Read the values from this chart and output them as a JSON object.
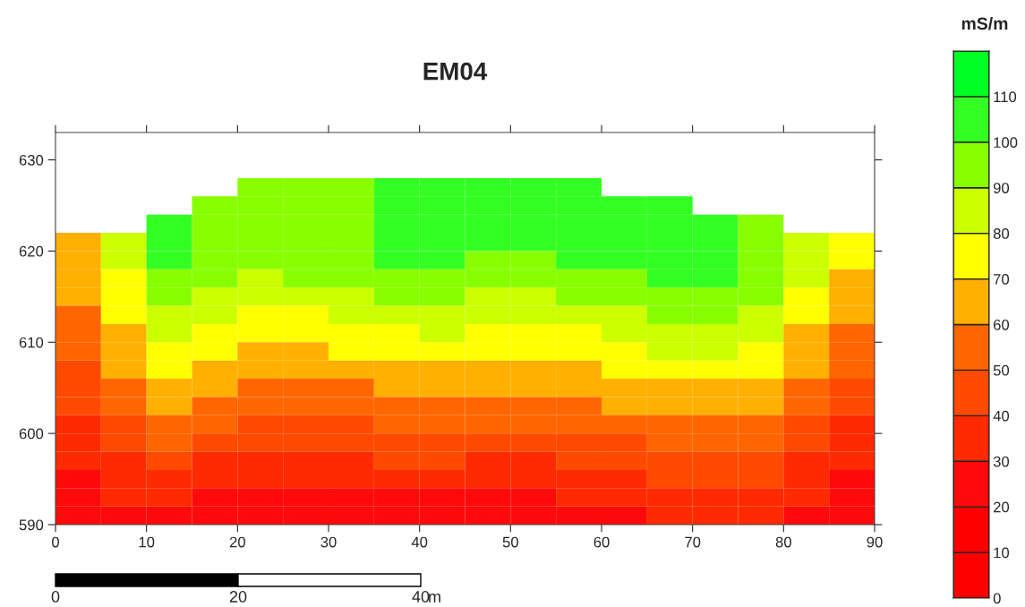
{
  "chart_data": {
    "type": "heatmap",
    "title": "EM04",
    "clabel": "mS/m",
    "x": [
      2.5,
      7.5,
      12.5,
      17.5,
      22.5,
      27.5,
      32.5,
      37.5,
      42.5,
      47.5,
      52.5,
      57.5,
      62.5,
      67.5,
      72.5,
      77.5,
      82.5,
      87.5
    ],
    "y": [
      627,
      625,
      623,
      621,
      619,
      617,
      615,
      613,
      611,
      609,
      607,
      605,
      603,
      601,
      599,
      597,
      595,
      593,
      591
    ],
    "xlim": [
      0,
      90
    ],
    "xticks": [
      0,
      10,
      20,
      30,
      40,
      50,
      60,
      70,
      80,
      90
    ],
    "ylim": [
      590,
      633
    ],
    "yticks": [
      590,
      600,
      610,
      620,
      630
    ],
    "cells": [
      [
        null,
        null,
        null,
        null,
        95,
        95,
        95,
        105,
        105,
        105,
        105,
        105,
        null,
        null,
        null,
        null,
        null,
        null
      ],
      [
        null,
        null,
        null,
        95,
        95,
        95,
        95,
        105,
        105,
        105,
        105,
        105,
        105,
        105,
        null,
        null,
        null,
        null
      ],
      [
        null,
        null,
        105,
        95,
        95,
        95,
        95,
        105,
        105,
        105,
        105,
        105,
        105,
        105,
        105,
        95,
        null,
        null
      ],
      [
        65,
        85,
        105,
        95,
        95,
        95,
        95,
        105,
        105,
        105,
        105,
        105,
        105,
        105,
        105,
        95,
        85,
        75
      ],
      [
        65,
        85,
        105,
        95,
        95,
        95,
        95,
        105,
        105,
        95,
        95,
        105,
        105,
        105,
        105,
        95,
        85,
        75
      ],
      [
        65,
        75,
        95,
        95,
        85,
        95,
        95,
        95,
        95,
        95,
        95,
        95,
        95,
        105,
        105,
        95,
        85,
        65
      ],
      [
        65,
        75,
        95,
        85,
        85,
        85,
        85,
        95,
        95,
        85,
        85,
        95,
        95,
        95,
        95,
        95,
        75,
        65
      ],
      [
        55,
        75,
        85,
        85,
        75,
        75,
        85,
        85,
        85,
        85,
        85,
        85,
        85,
        95,
        95,
        85,
        75,
        65
      ],
      [
        55,
        65,
        85,
        75,
        75,
        75,
        75,
        75,
        85,
        75,
        75,
        75,
        85,
        85,
        85,
        85,
        65,
        55
      ],
      [
        55,
        65,
        75,
        75,
        65,
        65,
        75,
        75,
        75,
        75,
        75,
        75,
        75,
        85,
        85,
        75,
        65,
        55
      ],
      [
        45,
        65,
        75,
        65,
        65,
        65,
        65,
        65,
        65,
        65,
        65,
        65,
        75,
        75,
        75,
        75,
        65,
        55
      ],
      [
        45,
        55,
        65,
        65,
        55,
        55,
        55,
        65,
        65,
        65,
        65,
        65,
        65,
        65,
        65,
        65,
        55,
        45
      ],
      [
        45,
        55,
        65,
        55,
        55,
        55,
        55,
        55,
        55,
        55,
        55,
        55,
        65,
        65,
        65,
        65,
        55,
        45
      ],
      [
        35,
        45,
        55,
        55,
        45,
        45,
        45,
        55,
        55,
        55,
        55,
        55,
        55,
        55,
        55,
        55,
        45,
        35
      ],
      [
        35,
        45,
        55,
        45,
        45,
        45,
        45,
        45,
        45,
        45,
        45,
        45,
        45,
        55,
        55,
        55,
        45,
        35
      ],
      [
        35,
        35,
        45,
        35,
        35,
        35,
        35,
        45,
        45,
        35,
        35,
        45,
        45,
        45,
        45,
        45,
        35,
        35
      ],
      [
        25,
        35,
        35,
        35,
        35,
        35,
        35,
        35,
        35,
        35,
        35,
        35,
        35,
        45,
        45,
        45,
        35,
        25
      ],
      [
        25,
        35,
        35,
        25,
        25,
        25,
        25,
        25,
        25,
        25,
        25,
        35,
        35,
        35,
        35,
        35,
        35,
        25
      ],
      [
        25,
        25,
        25,
        25,
        25,
        25,
        25,
        25,
        25,
        25,
        25,
        25,
        25,
        35,
        35,
        35,
        25,
        25
      ]
    ],
    "colors": [
      "#ff0000",
      "#ff0000",
      "#ff0a0a",
      "#ff2a00",
      "#ff4a00",
      "#ff6600",
      "#ffb000",
      "#ffff00",
      "#ccff00",
      "#88ff00",
      "#33ff22",
      "#00ff22"
    ],
    "clim": [
      0,
      120
    ],
    "cticks": [
      0,
      10,
      20,
      30,
      40,
      50,
      60,
      70,
      80,
      90,
      100,
      110
    ],
    "annotations": [
      "0",
      "20",
      "40",
      "m"
    ]
  }
}
